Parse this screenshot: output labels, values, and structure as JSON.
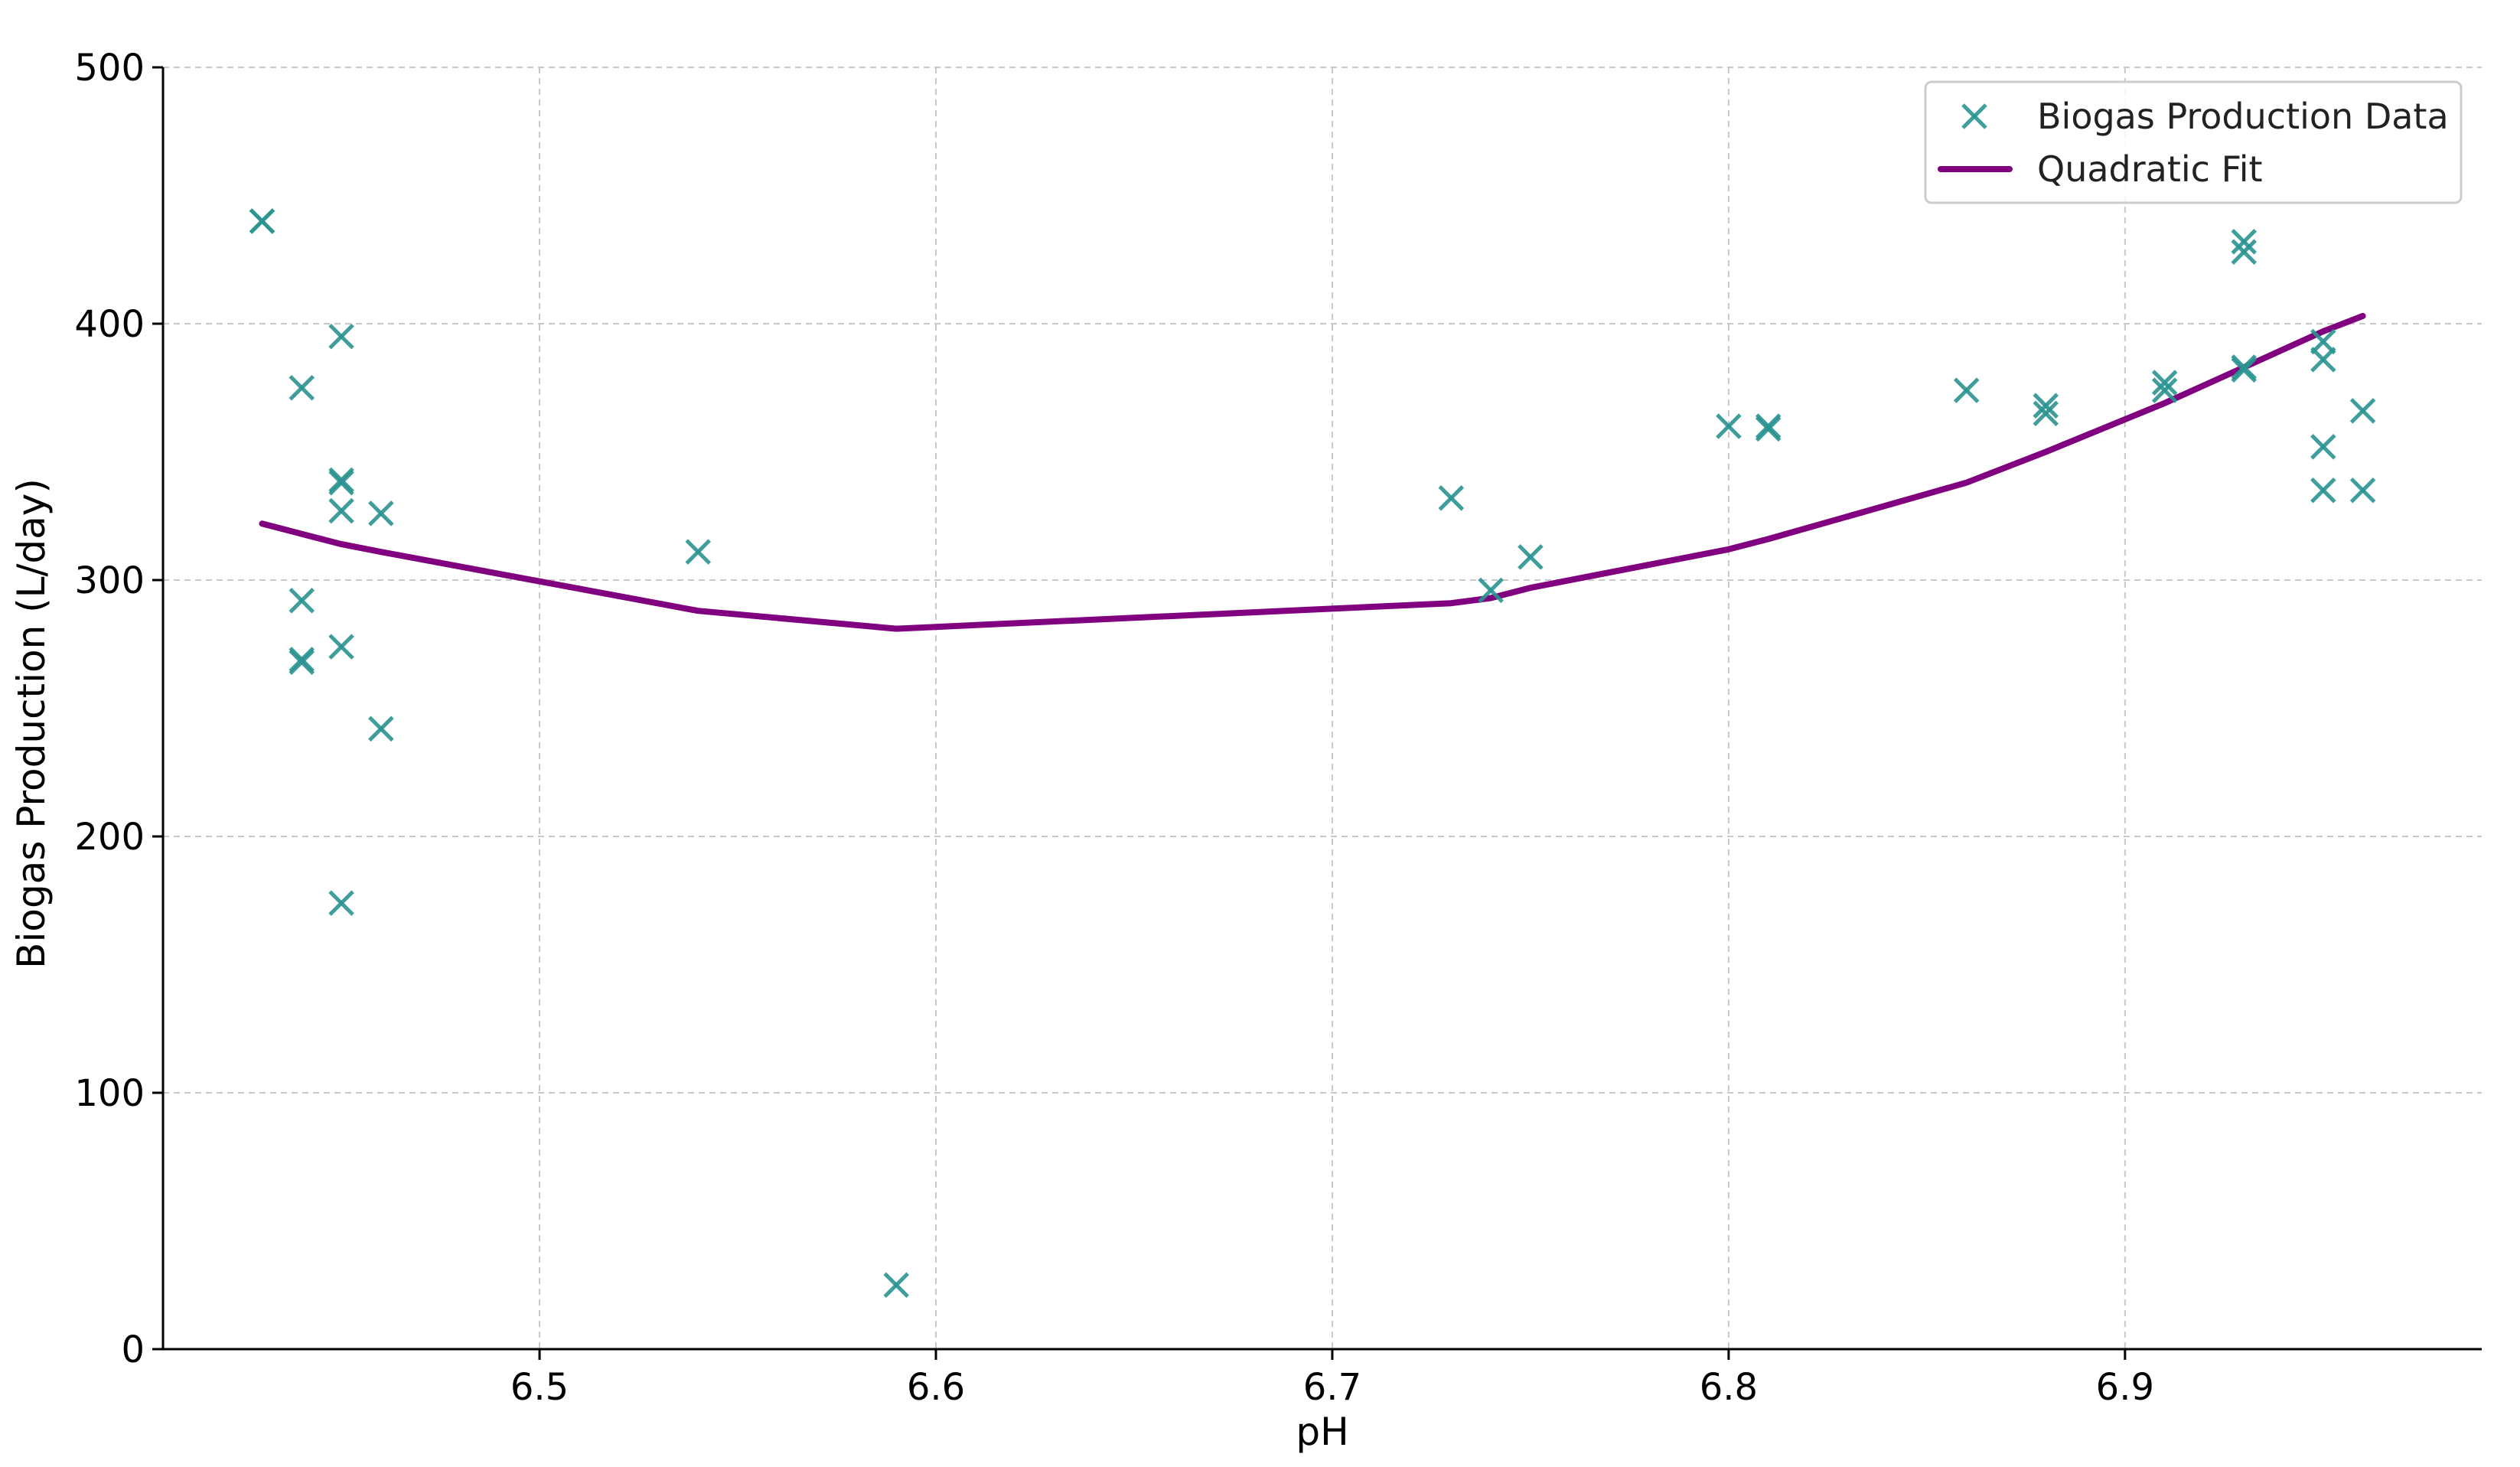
{
  "chart_data": {
    "type": "scatter",
    "xlabel": "pH",
    "ylabel": "Biogas Production (L/day)",
    "xlim": [
      6.405,
      6.99
    ],
    "ylim": [
      0,
      500
    ],
    "xticks": [
      6.5,
      6.6,
      6.7,
      6.8,
      6.9
    ],
    "yticks": [
      0,
      100,
      200,
      300,
      400,
      500
    ],
    "grid": true,
    "legend_position": "top-right",
    "series": [
      {
        "name": "Biogas Production Data",
        "kind": "scatter",
        "marker": "x",
        "color": "#2a9490",
        "points": [
          [
            6.43,
            440
          ],
          [
            6.43,
            440
          ],
          [
            6.44,
            375
          ],
          [
            6.44,
            292
          ],
          [
            6.44,
            269
          ],
          [
            6.44,
            268
          ],
          [
            6.45,
            395
          ],
          [
            6.45,
            339
          ],
          [
            6.45,
            338
          ],
          [
            6.45,
            327
          ],
          [
            6.45,
            274
          ],
          [
            6.45,
            174
          ],
          [
            6.46,
            326
          ],
          [
            6.46,
            242
          ],
          [
            6.54,
            311
          ],
          [
            6.59,
            25
          ],
          [
            6.73,
            332
          ],
          [
            6.74,
            296
          ],
          [
            6.75,
            309
          ],
          [
            6.8,
            360
          ],
          [
            6.81,
            360
          ],
          [
            6.81,
            359
          ],
          [
            6.86,
            374
          ],
          [
            6.88,
            368
          ],
          [
            6.88,
            365
          ],
          [
            6.91,
            377
          ],
          [
            6.91,
            374
          ],
          [
            6.93,
            432
          ],
          [
            6.93,
            428
          ],
          [
            6.93,
            383
          ],
          [
            6.93,
            382
          ],
          [
            6.95,
            393
          ],
          [
            6.95,
            386
          ],
          [
            6.95,
            352
          ],
          [
            6.95,
            335
          ],
          [
            6.96,
            366
          ],
          [
            6.96,
            335
          ]
        ]
      },
      {
        "name": "Quadratic Fit",
        "kind": "line",
        "color": "#800080",
        "points": [
          [
            6.43,
            322
          ],
          [
            6.44,
            318
          ],
          [
            6.45,
            314
          ],
          [
            6.46,
            311
          ],
          [
            6.54,
            288
          ],
          [
            6.59,
            281
          ],
          [
            6.73,
            291
          ],
          [
            6.74,
            293
          ],
          [
            6.75,
            297
          ],
          [
            6.8,
            312
          ],
          [
            6.81,
            316
          ],
          [
            6.86,
            338
          ],
          [
            6.88,
            350
          ],
          [
            6.91,
            369
          ],
          [
            6.93,
            383
          ],
          [
            6.95,
            397
          ],
          [
            6.96,
            403
          ]
        ]
      }
    ]
  }
}
